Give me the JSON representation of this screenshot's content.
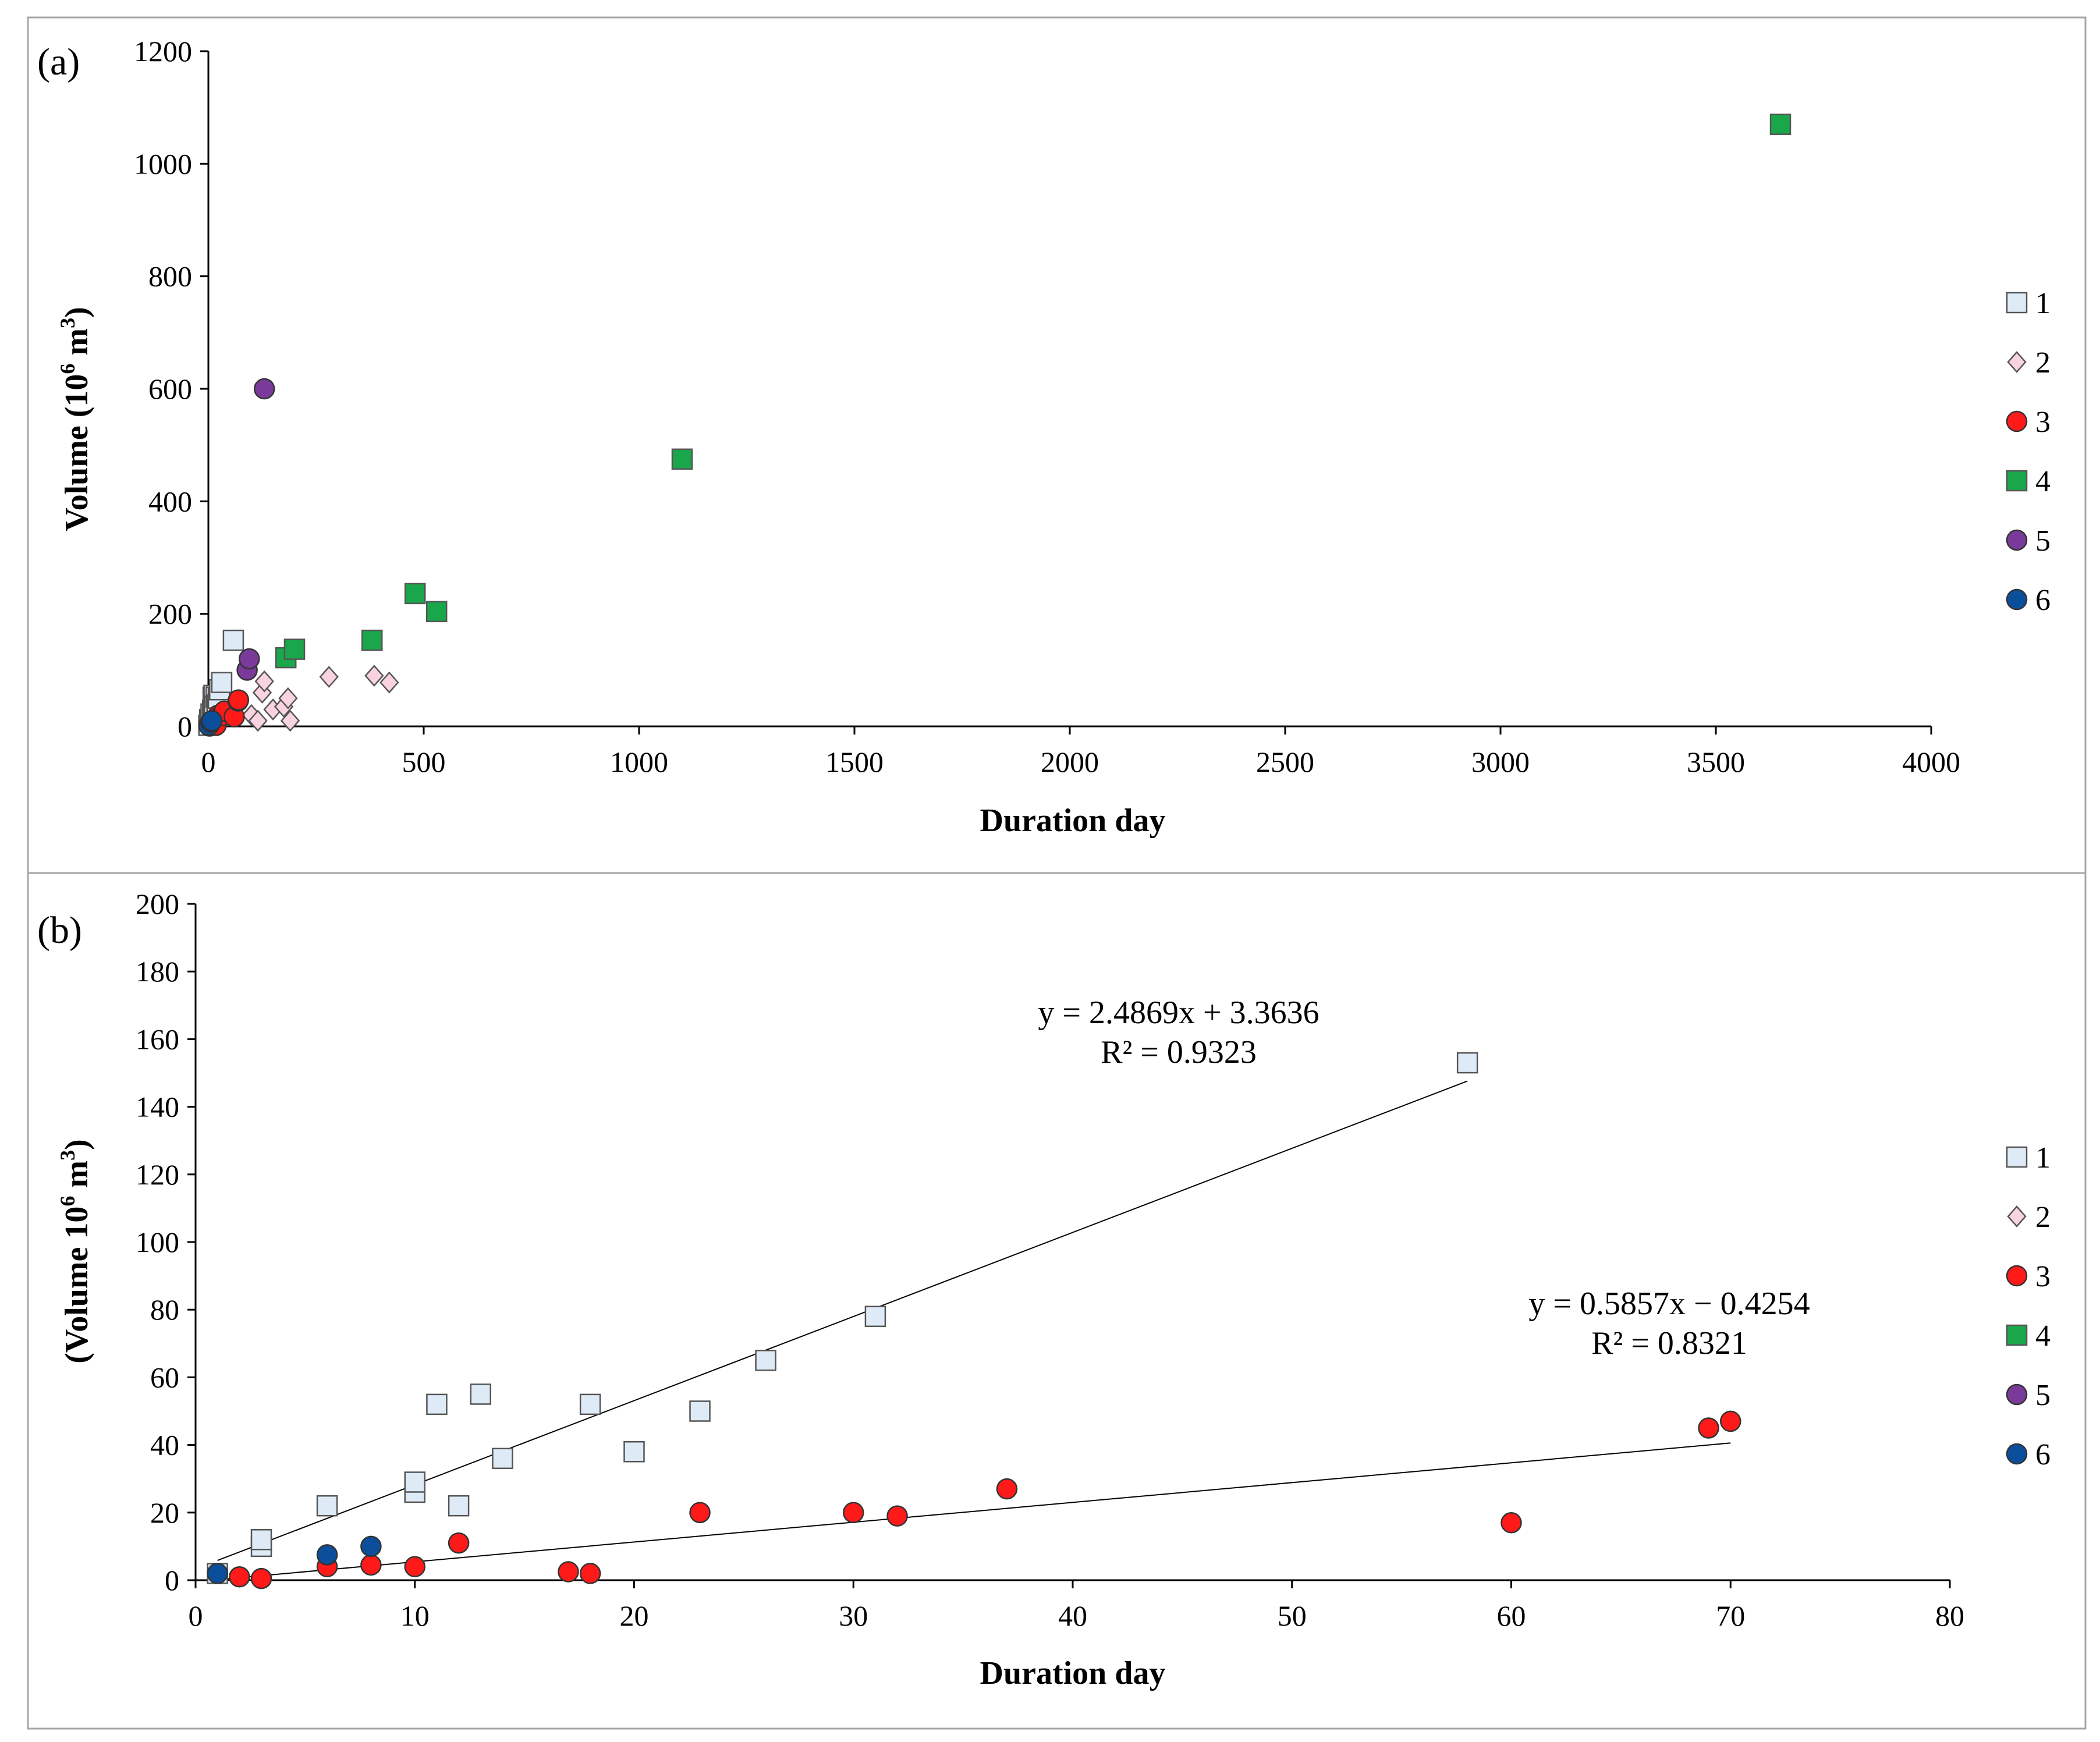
{
  "colors": {
    "series1_fill": "#deebf7",
    "series2_fill": "#f9d3e0",
    "series3_fill": "#ff1a1a",
    "series4_fill": "#1aa64b",
    "series5_fill": "#7a3a9a",
    "series6_fill": "#0b4f9c",
    "marker_stroke": "#555555",
    "frame": "#a6a6a6",
    "axis": "#000000",
    "trendline": "#000000"
  },
  "chart_data": [
    {
      "type": "scatter",
      "panel_label": "(a)",
      "xlabel": "Duration day",
      "ylabel_main": "Volume (10",
      "ylabel_sup": "6",
      "ylabel_unit": " m",
      "ylabel_sup2": "3",
      "ylabel_close": ")",
      "xlim": [
        0,
        4000
      ],
      "ylim": [
        0,
        1200
      ],
      "xticks": [
        0,
        500,
        1000,
        1500,
        2000,
        2500,
        3000,
        3500,
        4000
      ],
      "yticks": [
        0,
        200,
        400,
        600,
        800,
        1000,
        1200
      ],
      "grid": false,
      "legend_placement": "right",
      "series": [
        {
          "name": "1",
          "marker": "square",
          "color": "series1_fill",
          "points": [
            [
              1,
              2
            ],
            [
              3,
              10
            ],
            [
              3,
              12
            ],
            [
              6,
              22
            ],
            [
              10,
              26
            ],
            [
              10,
              29
            ],
            [
              11,
              52
            ],
            [
              12,
              22
            ],
            [
              13,
              55
            ],
            [
              14,
              36
            ],
            [
              18,
              52
            ],
            [
              20,
              38
            ],
            [
              23,
              50
            ],
            [
              26,
              65
            ],
            [
              31,
              78
            ],
            [
              58,
              153
            ]
          ]
        },
        {
          "name": "2",
          "marker": "diamond",
          "color": "series2_fill",
          "points": [
            [
              100,
              20
            ],
            [
              115,
              10
            ],
            [
              125,
              60
            ],
            [
              130,
              80
            ],
            [
              150,
              30
            ],
            [
              175,
              35
            ],
            [
              185,
              50
            ],
            [
              190,
              10
            ],
            [
              280,
              88
            ],
            [
              385,
              90
            ],
            [
              420,
              78
            ]
          ]
        },
        {
          "name": "3",
          "marker": "circle",
          "color": "series3_fill",
          "points": [
            [
              2,
              1
            ],
            [
              3,
              0.5
            ],
            [
              6,
              4
            ],
            [
              8,
              4.5
            ],
            [
              10,
              4
            ],
            [
              12,
              11
            ],
            [
              17,
              2.5
            ],
            [
              18,
              2
            ],
            [
              23,
              20
            ],
            [
              30,
              20
            ],
            [
              32,
              19
            ],
            [
              37,
              27
            ],
            [
              60,
              17
            ],
            [
              69,
              45
            ],
            [
              70,
              47
            ]
          ]
        },
        {
          "name": "4",
          "marker": "square",
          "color": "series4_fill",
          "points": [
            [
              180,
              122
            ],
            [
              200,
              137
            ],
            [
              380,
              153
            ],
            [
              480,
              236
            ],
            [
              530,
              204
            ],
            [
              1100,
              475
            ],
            [
              3650,
              1070
            ]
          ]
        },
        {
          "name": "5",
          "marker": "circle",
          "color": "series5_fill",
          "points": [
            [
              90,
              100
            ],
            [
              95,
              120
            ],
            [
              130,
              600
            ]
          ]
        },
        {
          "name": "6",
          "marker": "circle",
          "color": "series6_fill",
          "points": [
            [
              1,
              2
            ],
            [
              6,
              7.5
            ],
            [
              8,
              10
            ]
          ]
        }
      ]
    },
    {
      "type": "scatter",
      "panel_label": "(b)",
      "xlabel": "Duration day",
      "ylabel_main": "(Volume 10",
      "ylabel_sup": "6",
      "ylabel_unit": " m",
      "ylabel_sup2": "3",
      "ylabel_close": ")",
      "xlim": [
        0,
        80
      ],
      "ylim": [
        0,
        200
      ],
      "xticks": [
        0,
        10,
        20,
        30,
        40,
        50,
        60,
        70,
        80
      ],
      "yticks": [
        0,
        20,
        40,
        60,
        80,
        100,
        120,
        140,
        160,
        180,
        200
      ],
      "grid": false,
      "legend_placement": "right",
      "series": [
        {
          "name": "1",
          "marker": "square",
          "color": "series1_fill",
          "points": [
            [
              1,
              2
            ],
            [
              3,
              10
            ],
            [
              3,
              12
            ],
            [
              6,
              22
            ],
            [
              10,
              26
            ],
            [
              10,
              29
            ],
            [
              11,
              52
            ],
            [
              12,
              22
            ],
            [
              13,
              55
            ],
            [
              14,
              36
            ],
            [
              18,
              52
            ],
            [
              20,
              38
            ],
            [
              23,
              50
            ],
            [
              26,
              65
            ],
            [
              31,
              78
            ],
            [
              58,
              153
            ]
          ]
        },
        {
          "name": "2",
          "marker": "diamond",
          "color": "series2_fill",
          "points": []
        },
        {
          "name": "3",
          "marker": "circle",
          "color": "series3_fill",
          "points": [
            [
              2,
              1
            ],
            [
              3,
              0.5
            ],
            [
              6,
              4
            ],
            [
              8,
              4.5
            ],
            [
              10,
              4
            ],
            [
              12,
              11
            ],
            [
              17,
              2.5
            ],
            [
              18,
              2
            ],
            [
              23,
              20
            ],
            [
              30,
              20
            ],
            [
              32,
              19
            ],
            [
              37,
              27
            ],
            [
              60,
              17
            ],
            [
              69,
              45
            ],
            [
              70,
              47
            ]
          ]
        },
        {
          "name": "4",
          "marker": "square",
          "color": "series4_fill",
          "points": []
        },
        {
          "name": "5",
          "marker": "circle",
          "color": "series5_fill",
          "points": []
        },
        {
          "name": "6",
          "marker": "circle",
          "color": "series6_fill",
          "points": [
            [
              1,
              2
            ],
            [
              6,
              7.5
            ],
            [
              8,
              10
            ]
          ]
        }
      ],
      "trendlines": [
        {
          "series": "1",
          "slope": 2.4869,
          "intercept": 3.3636,
          "x_from": 1,
          "x_to": 58,
          "equation": "y = 2.4869x + 3.3636",
          "r2": "R² = 0.9323"
        },
        {
          "series": "3",
          "slope": 0.5857,
          "intercept": -0.4254,
          "x_from": 1,
          "x_to": 70,
          "equation": "y = 0.5857x − 0.4254",
          "r2": "R² = 0.8321"
        }
      ]
    }
  ]
}
